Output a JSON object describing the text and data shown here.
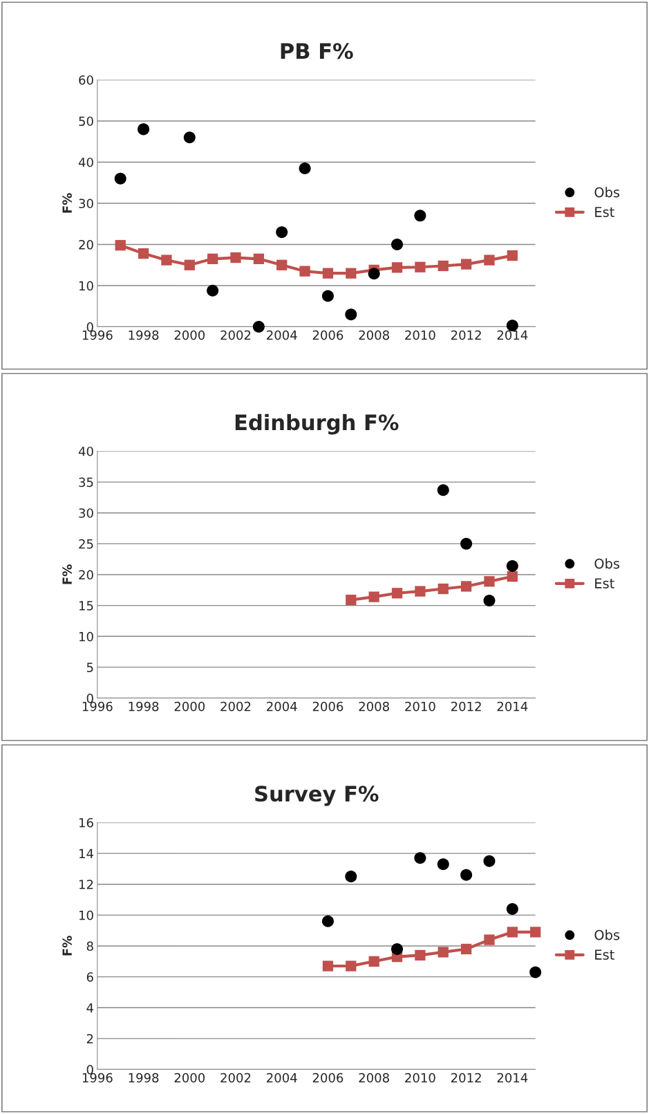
{
  "chart_data": [
    {
      "type": "line",
      "title": "PB F%",
      "ylabel": "F%",
      "xlim": [
        1996,
        2015
      ],
      "xticks": [
        1996,
        1998,
        2000,
        2002,
        2004,
        2006,
        2008,
        2010,
        2012,
        2014
      ],
      "ylim": [
        0,
        60
      ],
      "yticks": [
        0,
        10,
        20,
        30,
        40,
        50,
        60
      ],
      "grid": "y",
      "legend": "right",
      "series": [
        {
          "name": "Obs",
          "type": "scatter",
          "color": "#000000",
          "marker": "circle",
          "x": [
            1997,
            1998,
            2000,
            2001,
            2003,
            2004,
            2005,
            2006,
            2007,
            2008,
            2009,
            2010,
            2014
          ],
          "values": [
            36,
            48,
            46,
            8.8,
            0,
            23,
            38.5,
            7.5,
            3,
            12.9,
            20,
            27,
            0.3
          ]
        },
        {
          "name": "Est",
          "color": "#c0504d",
          "marker": "square",
          "x": [
            1997,
            1998,
            1999,
            2000,
            2001,
            2002,
            2003,
            2004,
            2005,
            2006,
            2007,
            2008,
            2009,
            2010,
            2011,
            2012,
            2013,
            2014
          ],
          "values": [
            19.8,
            17.8,
            16.2,
            15,
            16.5,
            16.8,
            16.5,
            15,
            13.5,
            13,
            13,
            13.8,
            14.4,
            14.5,
            14.8,
            15.2,
            16.2,
            17.3
          ]
        }
      ]
    },
    {
      "type": "line",
      "title": "Edinburgh F%",
      "ylabel": "F%",
      "xlim": [
        1996,
        2015
      ],
      "xticks": [
        1996,
        1998,
        2000,
        2002,
        2004,
        2006,
        2008,
        2010,
        2012,
        2014
      ],
      "ylim": [
        0,
        40
      ],
      "yticks": [
        0,
        5,
        10,
        15,
        20,
        25,
        30,
        35,
        40
      ],
      "grid": "y",
      "legend": "right",
      "series": [
        {
          "name": "Obs",
          "type": "scatter",
          "color": "#000000",
          "marker": "circle",
          "x": [
            2011,
            2012,
            2013,
            2014
          ],
          "values": [
            33.7,
            25,
            15.8,
            21.4
          ]
        },
        {
          "name": "Est",
          "color": "#c0504d",
          "marker": "square",
          "x": [
            2007,
            2008,
            2009,
            2010,
            2011,
            2012,
            2013,
            2014
          ],
          "values": [
            15.9,
            16.4,
            17,
            17.3,
            17.7,
            18.1,
            18.9,
            19.7
          ]
        }
      ]
    },
    {
      "type": "line",
      "title": "Survey F%",
      "ylabel": "F%",
      "xlim": [
        1996,
        2015
      ],
      "xticks": [
        1996,
        1998,
        2000,
        2002,
        2004,
        2006,
        2008,
        2010,
        2012,
        2014
      ],
      "ylim": [
        0,
        16
      ],
      "yticks": [
        0,
        2,
        4,
        6,
        8,
        10,
        12,
        14,
        16
      ],
      "grid": "y",
      "legend": "right",
      "series": [
        {
          "name": "Obs",
          "type": "scatter",
          "color": "#000000",
          "marker": "circle",
          "x": [
            2006,
            2007,
            2009,
            2010,
            2011,
            2012,
            2013,
            2014,
            2015
          ],
          "values": [
            9.6,
            12.5,
            7.8,
            13.7,
            13.3,
            12.6,
            13.5,
            10.4,
            6.3
          ]
        },
        {
          "name": "Est",
          "color": "#c0504d",
          "marker": "square",
          "x": [
            2006,
            2007,
            2008,
            2009,
            2010,
            2011,
            2012,
            2013,
            2014,
            2015
          ],
          "values": [
            6.7,
            6.7,
            7.0,
            7.3,
            7.4,
            7.6,
            7.8,
            8.4,
            8.9,
            8.9
          ]
        }
      ]
    }
  ]
}
